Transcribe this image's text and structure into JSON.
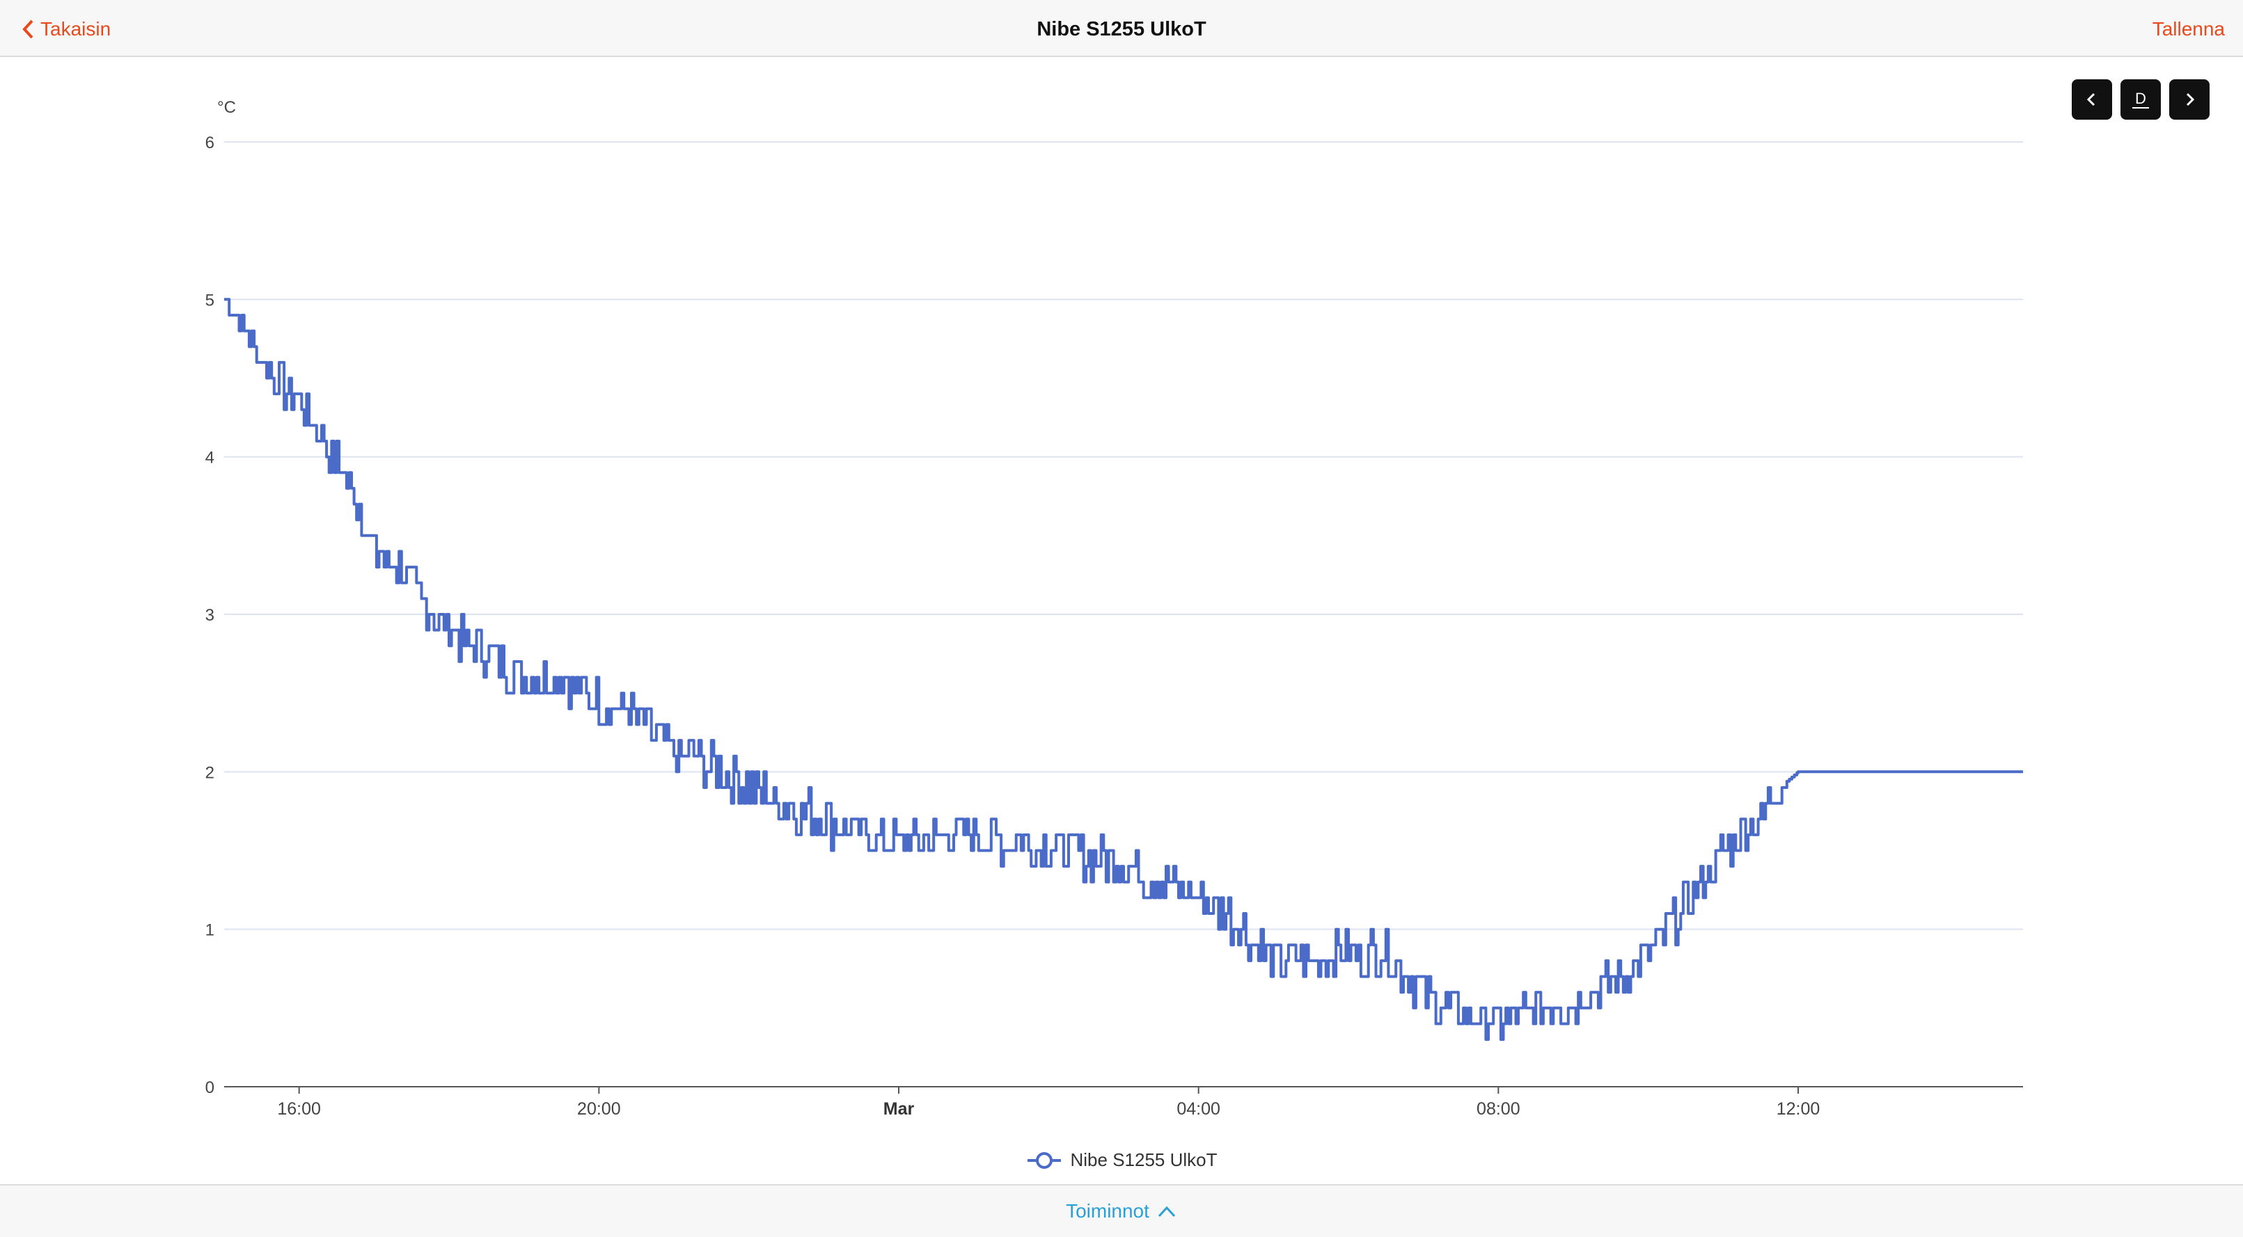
{
  "header": {
    "back_label": "Takaisin",
    "title": "Nibe S1255 UlkoT",
    "save_label": "Tallenna"
  },
  "range_controls": {
    "period_label": "D"
  },
  "legend": {
    "series_label": "Nibe S1255 UlkoT"
  },
  "footer": {
    "actions_label": "Toiminnot"
  },
  "colors": {
    "accent": "#e8491d",
    "link": "#2a9fd8",
    "series": "#4b6bc8",
    "grid": "#dde3f0"
  },
  "chart_data": {
    "type": "line",
    "unit_label": "°C",
    "ylim": [
      0,
      6
    ],
    "y_ticks": [
      "0",
      "1",
      "2",
      "3",
      "4",
      "5",
      "6"
    ],
    "x_range": [
      "15:00",
      "15:00"
    ],
    "x_ticks": [
      {
        "time": "16:00",
        "label": "16:00",
        "bold": false
      },
      {
        "time": "20:00",
        "label": "20:00",
        "bold": false
      },
      {
        "time": "24:00",
        "label": "Mar",
        "bold": true
      },
      {
        "time": "28:00",
        "label": "04:00",
        "bold": false
      },
      {
        "time": "32:00",
        "label": "08:00",
        "bold": false
      },
      {
        "time": "36:00",
        "label": "12:00",
        "bold": false
      }
    ],
    "grid": true,
    "legend_position": "bottom",
    "series": [
      {
        "name": "Nibe S1255 UlkoT",
        "points": [
          [
            "15:00",
            5.05
          ],
          [
            "15:20",
            4.75
          ],
          [
            "15:40",
            4.5
          ],
          [
            "16:00",
            4.35
          ],
          [
            "16:20",
            4.1
          ],
          [
            "16:40",
            3.85
          ],
          [
            "17:00",
            3.4
          ],
          [
            "17:20",
            3.3
          ],
          [
            "17:40",
            3.05
          ],
          [
            "18:00",
            2.9
          ],
          [
            "18:30",
            2.75
          ],
          [
            "19:00",
            2.6
          ],
          [
            "19:30",
            2.6
          ],
          [
            "20:00",
            2.45
          ],
          [
            "20:30",
            2.35
          ],
          [
            "21:00",
            2.1
          ],
          [
            "21:30",
            2.05
          ],
          [
            "22:00",
            1.9
          ],
          [
            "22:30",
            1.8
          ],
          [
            "23:00",
            1.7
          ],
          [
            "23:30",
            1.6
          ],
          [
            "24:00",
            1.55
          ],
          [
            "24:30",
            1.58
          ],
          [
            "25:00",
            1.6
          ],
          [
            "25:30",
            1.55
          ],
          [
            "26:00",
            1.52
          ],
          [
            "26:30",
            1.48
          ],
          [
            "27:00",
            1.42
          ],
          [
            "27:30",
            1.3
          ],
          [
            "28:00",
            1.2
          ],
          [
            "28:30",
            1.05
          ],
          [
            "29:00",
            0.8
          ],
          [
            "29:30",
            0.8
          ],
          [
            "30:00",
            0.85
          ],
          [
            "30:30",
            0.85
          ],
          [
            "31:00",
            0.6
          ],
          [
            "31:30",
            0.45
          ],
          [
            "32:00",
            0.4
          ],
          [
            "32:30",
            0.5
          ],
          [
            "33:00",
            0.55
          ],
          [
            "33:30",
            0.65
          ],
          [
            "34:00",
            0.85
          ],
          [
            "34:30",
            1.15
          ],
          [
            "35:00",
            1.5
          ],
          [
            "35:30",
            1.7
          ],
          [
            "35:45",
            1.9
          ],
          [
            "36:00",
            2.0
          ],
          [
            "39:00",
            2.0
          ]
        ]
      }
    ]
  }
}
